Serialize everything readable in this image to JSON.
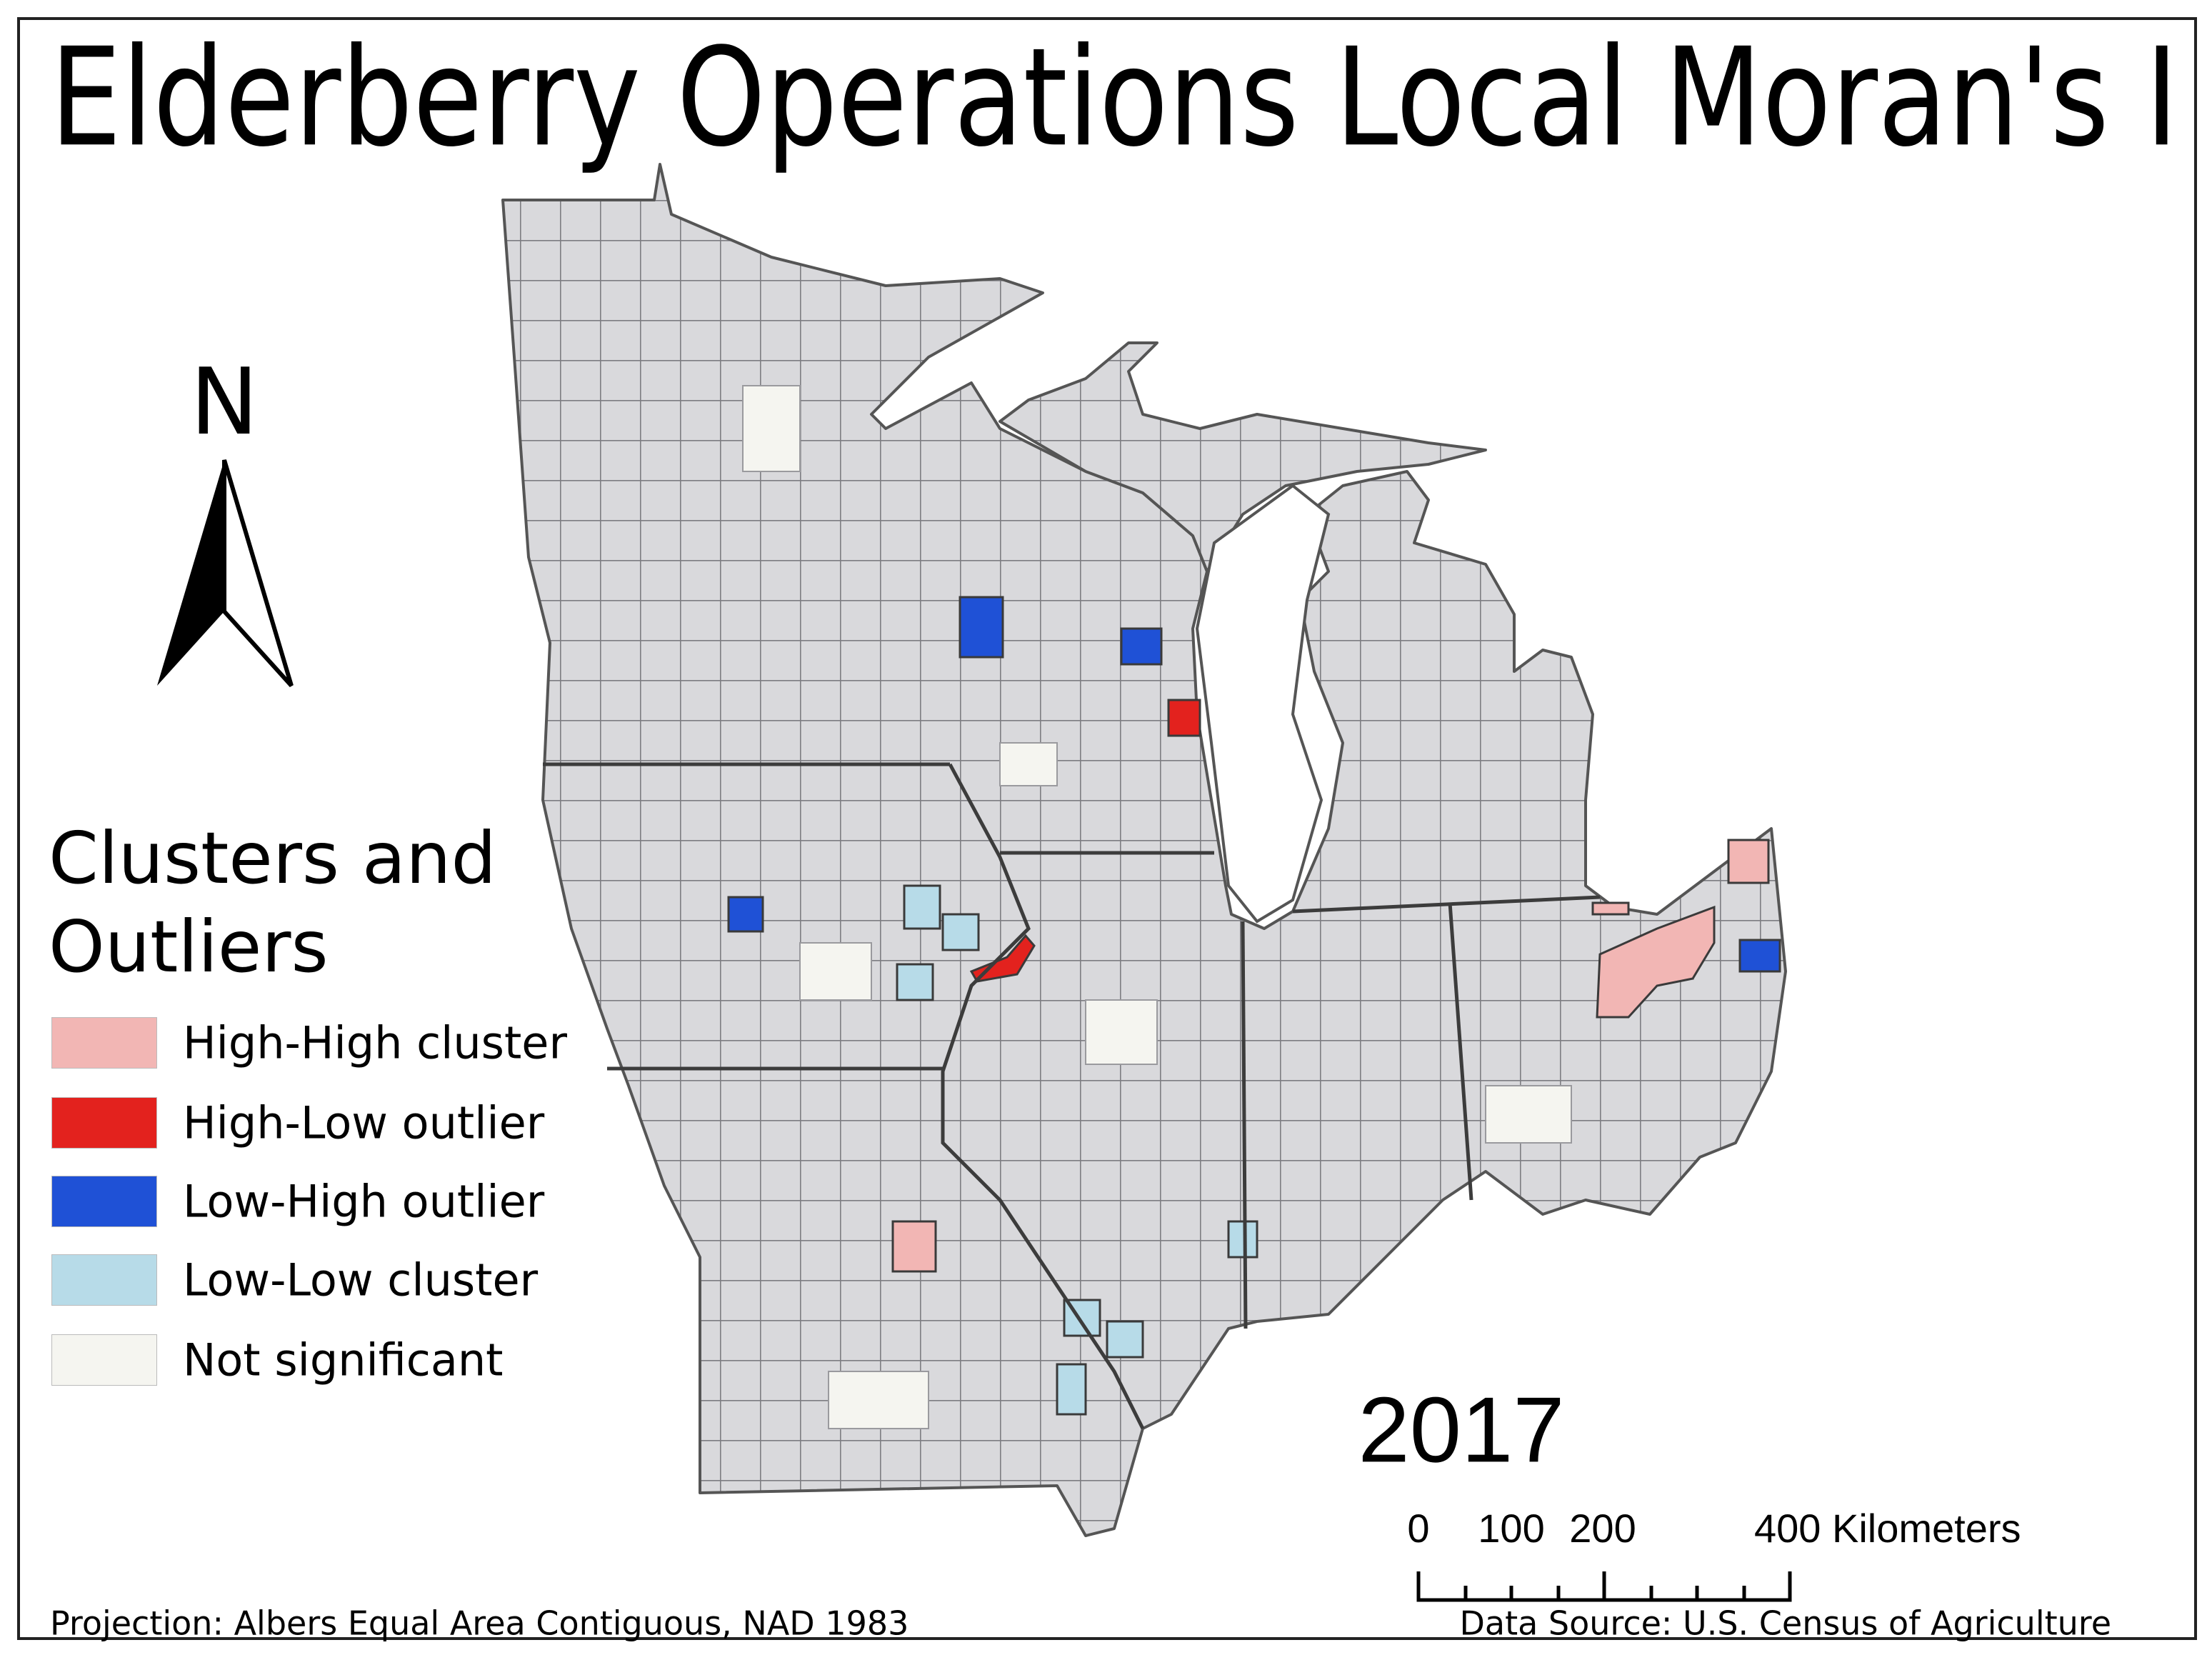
{
  "title": "Elderberry Operations Local Moran's I",
  "north": "N",
  "legend": {
    "title": "Clusters and Outliers",
    "items": [
      {
        "label": "High-High cluster",
        "color": "#f2b6b4"
      },
      {
        "label": "High-Low outlier",
        "color": "#e3221e"
      },
      {
        "label": "Low-High outlier",
        "color": "#1f51d6"
      },
      {
        "label": "Low-Low cluster",
        "color": "#b7dbe8"
      },
      {
        "label": "Not significant",
        "color": "#f5f5f0"
      }
    ]
  },
  "year": "2017",
  "scale": {
    "labels": [
      "0",
      "100",
      "200",
      "400 Kilometers"
    ]
  },
  "footer": {
    "projection": "Projection: Albers Equal Area Contiguous, NAD 1983",
    "source": "Data Source: U.S. Census of Agriculture"
  }
}
